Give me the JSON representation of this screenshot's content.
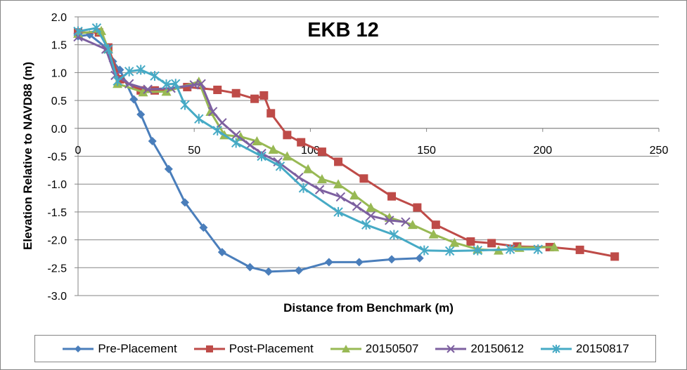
{
  "chart_data": {
    "type": "line",
    "title": "EKB 12",
    "xlabel": "Distance from Benchmark (m)",
    "ylabel": "Elevation Relative to NAVD88 (m)",
    "xlim": [
      0,
      250
    ],
    "ylim": [
      -3.0,
      2.0
    ],
    "x_ticks": [
      "0",
      "50",
      "100",
      "150",
      "200",
      "250"
    ],
    "y_ticks": [
      "2.0",
      "1.5",
      "1.0",
      "0.5",
      "0.0",
      "-0.5",
      "-1.0",
      "-1.5",
      "-2.0",
      "-2.5",
      "-3.0"
    ],
    "grid": "horizontal",
    "legend_position": "bottom",
    "series": [
      {
        "name": "Pre-Placement",
        "color": "#4a7ebb",
        "marker": "diamond",
        "points": [
          [
            0,
            1.65
          ],
          [
            5,
            1.68
          ],
          [
            12,
            1.45
          ],
          [
            15,
            1.2
          ],
          [
            18,
            1.05
          ],
          [
            24,
            0.52
          ],
          [
            27,
            0.25
          ],
          [
            32,
            -0.23
          ],
          [
            39,
            -0.73
          ],
          [
            46,
            -1.33
          ],
          [
            54,
            -1.78
          ],
          [
            62,
            -2.22
          ],
          [
            74,
            -2.49
          ],
          [
            82,
            -2.57
          ],
          [
            95,
            -2.55
          ],
          [
            108,
            -2.4
          ],
          [
            121,
            -2.4
          ],
          [
            135,
            -2.35
          ],
          [
            147,
            -2.33
          ]
        ]
      },
      {
        "name": "Post-Placement",
        "color": "#be4b48",
        "marker": "square",
        "points": [
          [
            0,
            1.72
          ],
          [
            9,
            1.72
          ],
          [
            13,
            1.45
          ],
          [
            18,
            0.88
          ],
          [
            27,
            0.68
          ],
          [
            33,
            0.68
          ],
          [
            47,
            0.74
          ],
          [
            60,
            0.69
          ],
          [
            68,
            0.63
          ],
          [
            76,
            0.53
          ],
          [
            80,
            0.59
          ],
          [
            83,
            0.27
          ],
          [
            90,
            -0.12
          ],
          [
            96,
            -0.25
          ],
          [
            105,
            -0.42
          ],
          [
            112,
            -0.6
          ],
          [
            123,
            -0.9
          ],
          [
            135,
            -1.22
          ],
          [
            146,
            -1.42
          ],
          [
            154,
            -1.73
          ],
          [
            169,
            -2.03
          ],
          [
            178,
            -2.06
          ],
          [
            189,
            -2.12
          ],
          [
            203,
            -2.13
          ],
          [
            216,
            -2.18
          ],
          [
            231,
            -2.3
          ]
        ]
      },
      {
        "name": "20150507",
        "color": "#98b954",
        "marker": "triangle",
        "points": [
          [
            0,
            1.7
          ],
          [
            10,
            1.75
          ],
          [
            13,
            1.42
          ],
          [
            17,
            0.8
          ],
          [
            28,
            0.65
          ],
          [
            38,
            0.66
          ],
          [
            52,
            0.84
          ],
          [
            57,
            0.3
          ],
          [
            63,
            -0.12
          ],
          [
            70,
            -0.15
          ],
          [
            77,
            -0.23
          ],
          [
            84,
            -0.38
          ],
          [
            90,
            -0.5
          ],
          [
            99,
            -0.73
          ],
          [
            105,
            -0.91
          ],
          [
            112,
            -1.0
          ],
          [
            119,
            -1.2
          ],
          [
            126,
            -1.42
          ],
          [
            134,
            -1.6
          ],
          [
            144,
            -1.73
          ],
          [
            153,
            -1.9
          ],
          [
            162,
            -2.05
          ],
          [
            172,
            -2.17
          ],
          [
            181,
            -2.19
          ],
          [
            190,
            -2.14
          ],
          [
            205,
            -2.13
          ]
        ]
      },
      {
        "name": "20150612",
        "color": "#7d60a0",
        "marker": "x",
        "points": [
          [
            0,
            1.64
          ],
          [
            12,
            1.42
          ],
          [
            16,
            0.95
          ],
          [
            22,
            0.8
          ],
          [
            30,
            0.7
          ],
          [
            40,
            0.72
          ],
          [
            50,
            0.78
          ],
          [
            53,
            0.8
          ],
          [
            58,
            0.3
          ],
          [
            62,
            0.1
          ],
          [
            68,
            -0.12
          ],
          [
            74,
            -0.3
          ],
          [
            79,
            -0.45
          ],
          [
            86,
            -0.6
          ],
          [
            95,
            -0.88
          ],
          [
            104,
            -1.1
          ],
          [
            113,
            -1.23
          ],
          [
            120,
            -1.4
          ],
          [
            126,
            -1.57
          ],
          [
            134,
            -1.65
          ],
          [
            141,
            -1.68
          ]
        ]
      },
      {
        "name": "20150817",
        "color": "#46aac5",
        "marker": "asterisk",
        "points": [
          [
            0,
            1.74
          ],
          [
            8,
            1.8
          ],
          [
            13,
            1.42
          ],
          [
            17,
            0.85
          ],
          [
            22,
            1.02
          ],
          [
            27,
            1.05
          ],
          [
            33,
            0.94
          ],
          [
            38,
            0.79
          ],
          [
            42,
            0.8
          ],
          [
            46,
            0.42
          ],
          [
            52,
            0.17
          ],
          [
            60,
            -0.04
          ],
          [
            68,
            -0.26
          ],
          [
            79,
            -0.5
          ],
          [
            87,
            -0.68
          ],
          [
            97,
            -1.07
          ],
          [
            112,
            -1.5
          ],
          [
            124,
            -1.73
          ],
          [
            136,
            -1.91
          ],
          [
            149,
            -2.19
          ],
          [
            160,
            -2.2
          ],
          [
            172,
            -2.19
          ],
          [
            186,
            -2.17
          ],
          [
            198,
            -2.17
          ]
        ]
      }
    ]
  }
}
